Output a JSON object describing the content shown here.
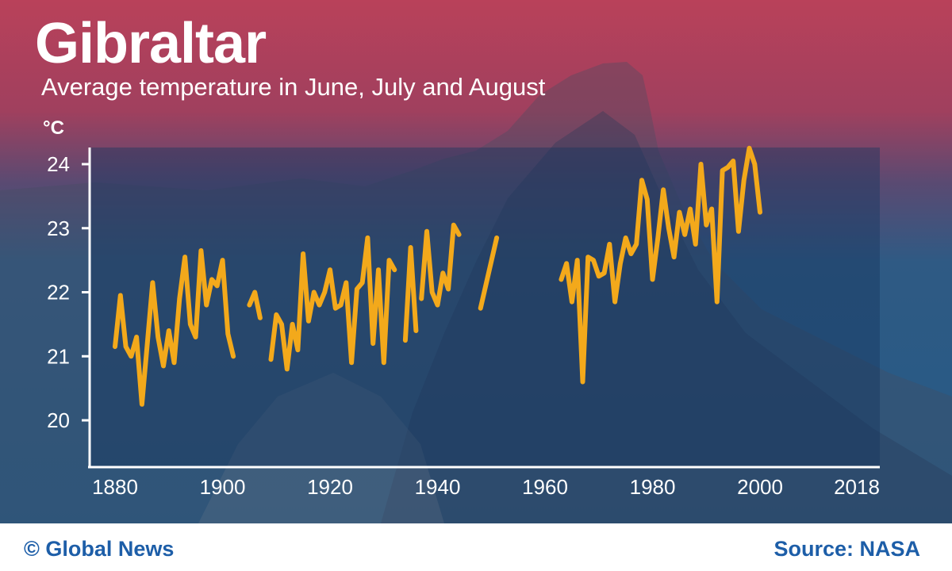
{
  "title": "Gibraltar",
  "subtitle": "Average temperature in June, July and August",
  "footer": {
    "credit": "© Global News",
    "source": "Source: NASA"
  },
  "colors": {
    "line": "#f3a91b",
    "top_band": "#b9415a",
    "bottom_band": "#245a86",
    "footer_text": "#1d5ea8"
  },
  "chart_data": {
    "type": "line",
    "title": "Gibraltar",
    "subtitle": "Average temperature in June, July and August",
    "ylabel": "°C",
    "xlabel": "",
    "xlim": [
      1880,
      2018
    ],
    "ylim": [
      19.25,
      24.25
    ],
    "x_ticks": [
      1880,
      1900,
      1920,
      1940,
      1960,
      1980,
      2000,
      2018
    ],
    "y_ticks": [
      20,
      21,
      22,
      23,
      24
    ],
    "grid": false,
    "legend": "none",
    "series": [
      {
        "segments": [
          [
            [
              1880,
              21.15
            ],
            [
              1881,
              21.95
            ],
            [
              1882,
              21.15
            ],
            [
              1883,
              21.0
            ],
            [
              1884,
              21.3
            ],
            [
              1885,
              20.25
            ],
            [
              1886,
              21.2
            ],
            [
              1887,
              22.15
            ],
            [
              1888,
              21.3
            ],
            [
              1889,
              20.85
            ],
            [
              1890,
              21.4
            ],
            [
              1891,
              20.9
            ],
            [
              1892,
              21.9
            ],
            [
              1893,
              22.55
            ],
            [
              1894,
              21.5
            ],
            [
              1895,
              21.3
            ],
            [
              1896,
              22.65
            ],
            [
              1897,
              21.8
            ],
            [
              1898,
              22.2
            ],
            [
              1899,
              22.1
            ],
            [
              1900,
              22.5
            ],
            [
              1901,
              21.35
            ],
            [
              1902,
              21.0
            ]
          ],
          [
            [
              1905,
              21.8
            ],
            [
              1906,
              22.0
            ],
            [
              1907,
              21.6
            ]
          ],
          [
            [
              1909,
              20.95
            ],
            [
              1910,
              21.65
            ],
            [
              1911,
              21.5
            ],
            [
              1912,
              20.8
            ],
            [
              1913,
              21.5
            ],
            [
              1914,
              21.1
            ],
            [
              1915,
              22.6
            ],
            [
              1916,
              21.55
            ],
            [
              1917,
              22.0
            ],
            [
              1918,
              21.8
            ],
            [
              1919,
              22.0
            ],
            [
              1920,
              22.35
            ],
            [
              1921,
              21.75
            ],
            [
              1922,
              21.8
            ],
            [
              1923,
              22.15
            ],
            [
              1924,
              20.9
            ],
            [
              1925,
              22.05
            ],
            [
              1926,
              22.15
            ],
            [
              1927,
              22.85
            ],
            [
              1928,
              21.2
            ],
            [
              1929,
              22.35
            ],
            [
              1930,
              20.9
            ],
            [
              1931,
              22.5
            ],
            [
              1932,
              22.35
            ]
          ],
          [
            [
              1934,
              21.25
            ],
            [
              1935,
              22.7
            ],
            [
              1936,
              21.4
            ]
          ],
          [
            [
              1937,
              21.9
            ],
            [
              1938,
              22.95
            ],
            [
              1939,
              22.0
            ],
            [
              1940,
              21.8
            ],
            [
              1941,
              22.3
            ],
            [
              1942,
              22.05
            ],
            [
              1943,
              23.05
            ],
            [
              1944,
              22.9
            ]
          ],
          [
            [
              1948,
              21.75
            ],
            [
              1951,
              22.85
            ]
          ],
          [
            [
              1963,
              22.2
            ],
            [
              1964,
              22.45
            ],
            [
              1965,
              21.85
            ],
            [
              1966,
              22.5
            ],
            [
              1967,
              20.6
            ],
            [
              1968,
              22.55
            ],
            [
              1969,
              22.5
            ],
            [
              1970,
              22.25
            ],
            [
              1971,
              22.3
            ],
            [
              1972,
              22.75
            ],
            [
              1973,
              21.85
            ],
            [
              1974,
              22.45
            ],
            [
              1975,
              22.85
            ],
            [
              1976,
              22.6
            ],
            [
              1977,
              22.75
            ],
            [
              1978,
              23.75
            ],
            [
              1979,
              23.45
            ],
            [
              1980,
              22.2
            ],
            [
              1981,
              22.85
            ],
            [
              1982,
              23.6
            ],
            [
              1983,
              23.0
            ],
            [
              1984,
              22.55
            ],
            [
              1985,
              23.25
            ],
            [
              1986,
              22.9
            ],
            [
              1987,
              23.3
            ],
            [
              1988,
              22.75
            ],
            [
              1989,
              24.0
            ],
            [
              1990,
              23.05
            ],
            [
              1991,
              23.3
            ],
            [
              1992,
              21.85
            ],
            [
              1993,
              23.9
            ],
            [
              1994,
              23.95
            ],
            [
              1995,
              24.05
            ],
            [
              1996,
              22.95
            ],
            [
              1997,
              23.75
            ],
            [
              1998,
              24.25
            ],
            [
              1999,
              24.0
            ],
            [
              2000,
              23.25
            ]
          ]
        ]
      }
    ]
  }
}
